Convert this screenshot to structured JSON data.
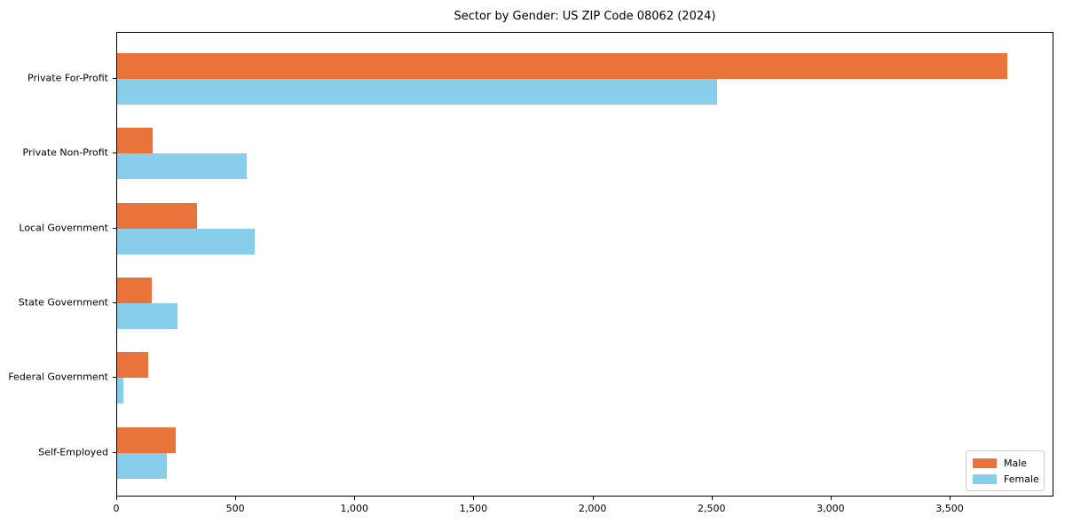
{
  "title": "Sector by Gender: US ZIP Code 08062 (2024)",
  "colors": {
    "male": "#e8743b",
    "female": "#87ceeb",
    "spine": "#000000",
    "legend_border": "#cccccc",
    "background": "#ffffff"
  },
  "legend": {
    "male_label": "Male",
    "female_label": "Female",
    "position": "lower right"
  },
  "chart_data": {
    "type": "bar",
    "orientation": "horizontal",
    "title": "Sector by Gender: US ZIP Code 08062 (2024)",
    "xlabel": "",
    "ylabel": "",
    "categories": [
      "Private For-Profit",
      "Private Non-Profit",
      "Local Government",
      "State Government",
      "Federal Government",
      "Self-Employed"
    ],
    "series": [
      {
        "name": "Male",
        "color": "#e8743b",
        "values": [
          3740,
          148,
          334,
          145,
          129,
          245
        ]
      },
      {
        "name": "Female",
        "color": "#87ceeb",
        "values": [
          2520,
          545,
          577,
          252,
          27,
          207
        ]
      }
    ],
    "xlim": [
      0,
      3936
    ],
    "x_ticks": [
      0,
      500,
      1000,
      1500,
      2000,
      2500,
      3000,
      3500
    ],
    "x_tick_labels": [
      "0",
      "500",
      "1,000",
      "1,500",
      "2,000",
      "2,500",
      "3,000",
      "3,500"
    ],
    "grid": false,
    "legend_position": "lower right"
  }
}
